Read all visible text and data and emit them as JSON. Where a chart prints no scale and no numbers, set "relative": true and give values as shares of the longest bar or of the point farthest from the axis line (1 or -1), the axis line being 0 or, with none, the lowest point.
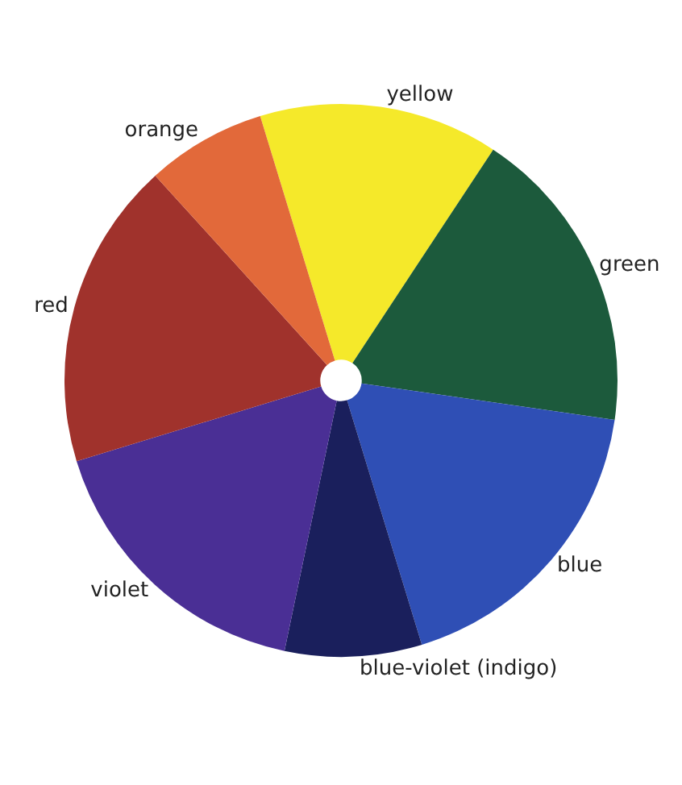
{
  "chart_data": {
    "type": "pie",
    "relative": true,
    "categories": [
      "yellow",
      "green",
      "blue",
      "blue-violet (indigo)",
      "violet",
      "red",
      "orange"
    ],
    "values": [
      14,
      18,
      18,
      8,
      17,
      18,
      7
    ],
    "colors": [
      "#f5e92a",
      "#1c5a3c",
      "#2f4fb5",
      "#1a1f5c",
      "#4a2f95",
      "#a0322c",
      "#e2693a"
    ],
    "legend": false
  }
}
